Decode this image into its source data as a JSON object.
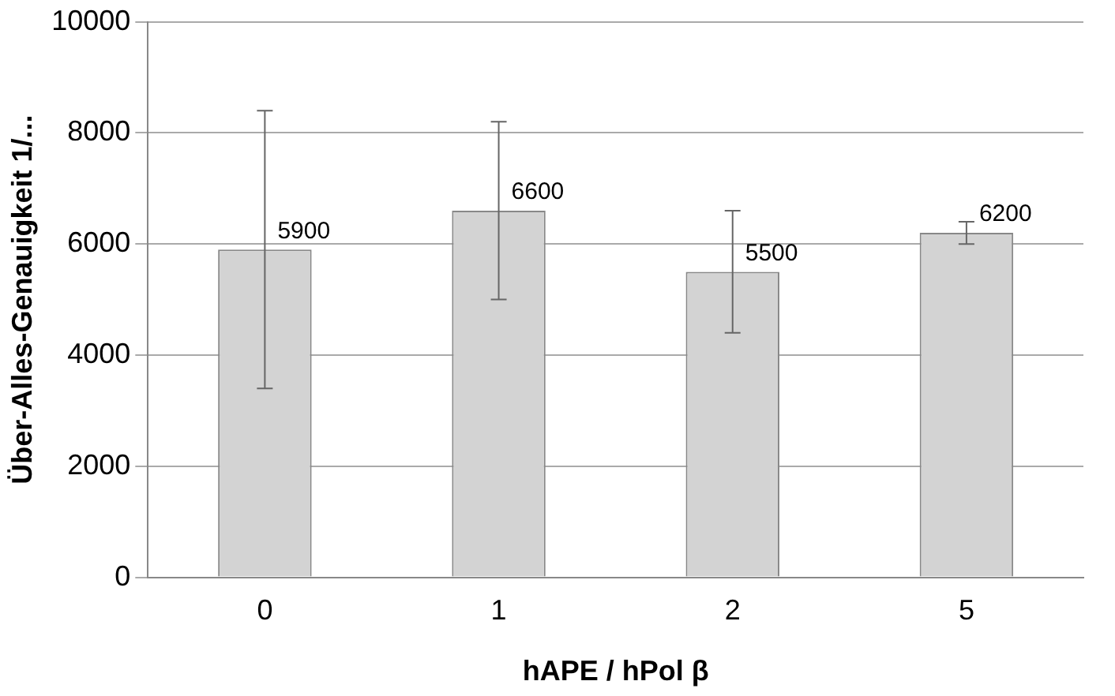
{
  "chart_data": {
    "type": "bar",
    "xlabel": "hAPE / hPol β",
    "ylabel": "Über-Alles-Genauigkeit 1/...",
    "categories": [
      "0",
      "1",
      "2",
      "5"
    ],
    "values": [
      5900,
      6600,
      5500,
      6200
    ],
    "errors": [
      [
        3400,
        8400
      ],
      [
        5000,
        8200
      ],
      [
        4400,
        6600
      ],
      [
        6000,
        6400
      ]
    ],
    "color": "#d3d3d3",
    "data_labels": true,
    "grid": "y",
    "legend": false,
    "ylim": [
      0,
      10000
    ],
    "yticks": [
      0,
      2000,
      4000,
      6000,
      8000,
      10000
    ]
  }
}
